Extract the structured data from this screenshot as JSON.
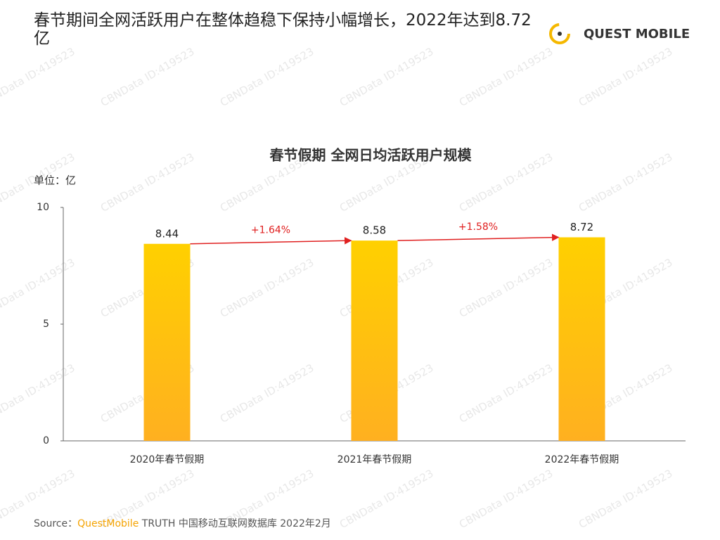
{
  "header": {
    "title": "春节期间全网活跃用户在整体趋稳下保持小幅增长，2022年达到8.72亿"
  },
  "logo": "QUEST MOBILE",
  "watermark": "CBNData ID:419523",
  "chart_data": {
    "type": "bar",
    "title": "春节假期 全网日均活跃用户规模",
    "unit_label": "单位：亿",
    "categories": [
      "2020年春节假期",
      "2021年春节假期",
      "2022年春节假期"
    ],
    "values": [
      8.44,
      8.58,
      8.72
    ],
    "color": "#ffc107",
    "ylim": [
      0,
      10
    ],
    "yticks": [
      0,
      5,
      10
    ],
    "annotations": [
      {
        "label": "+1.64%"
      },
      {
        "label": "+1.58%"
      }
    ]
  },
  "source": {
    "prefix": "Source：",
    "brand": "QuestMobile",
    "text": "TRUTH 中国移动互联网数据库 2022年2月"
  }
}
